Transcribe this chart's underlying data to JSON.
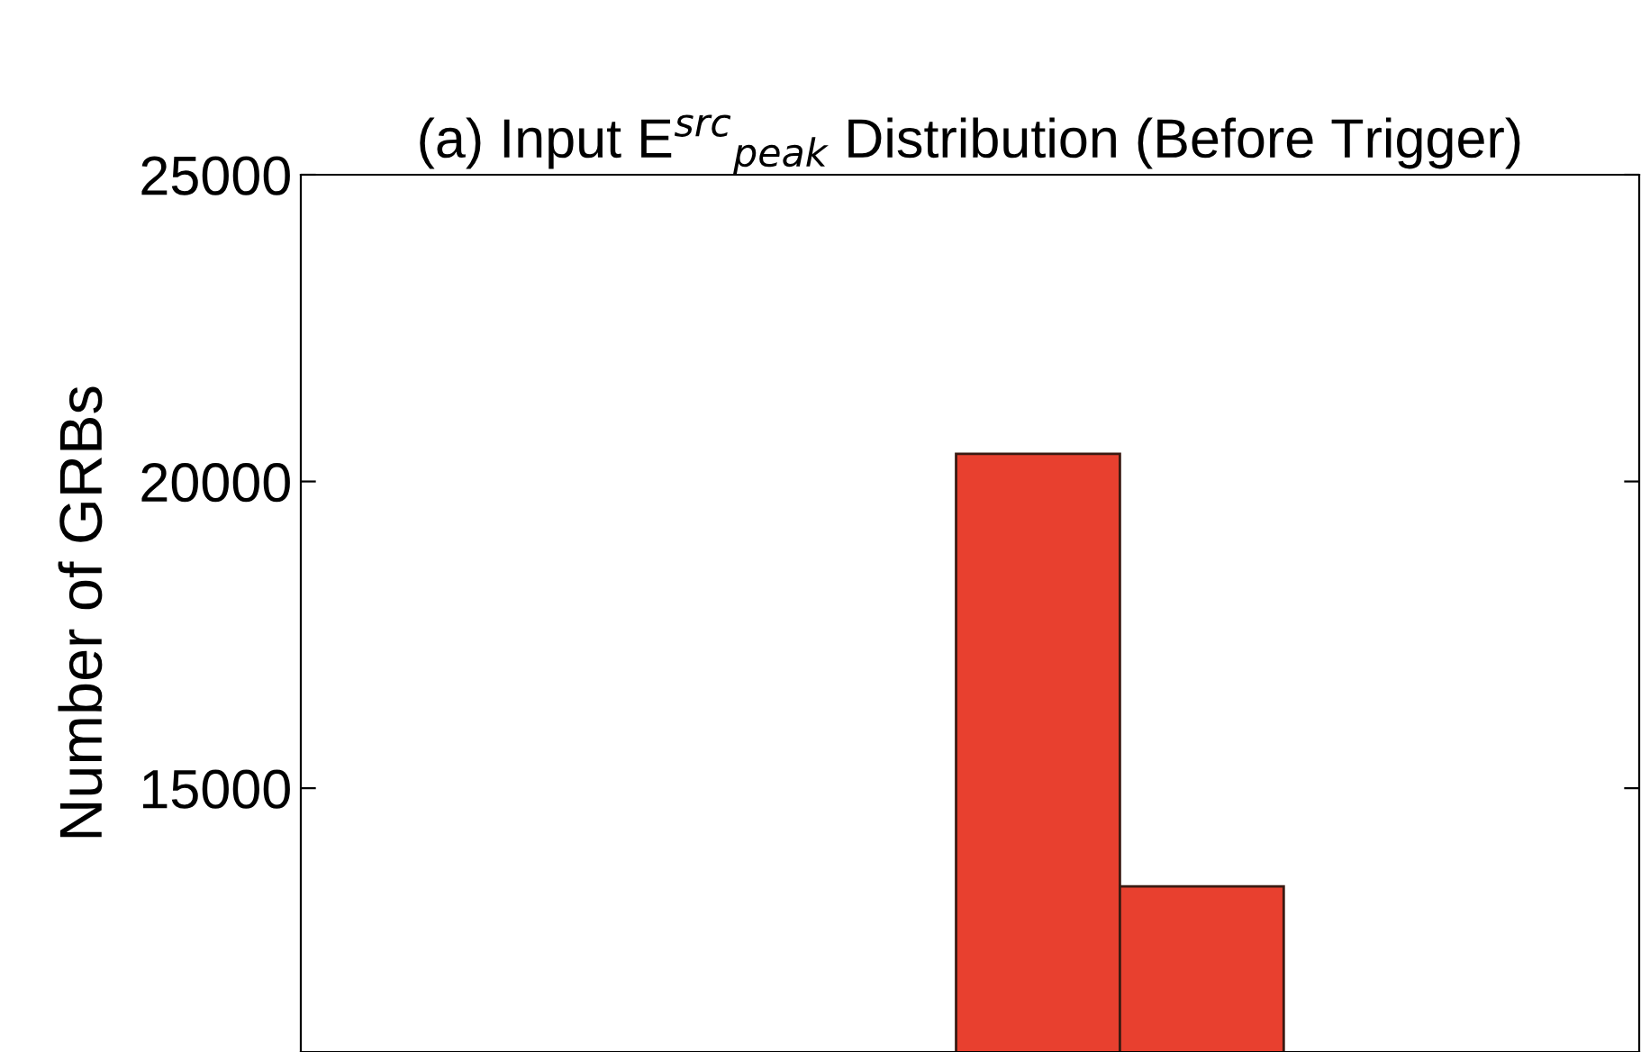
{
  "chart_data": {
    "type": "bar",
    "title": "(a) Input E$^{src}$$_{peak}$ Distribution (Before Trigger)",
    "ylabel": "Number of GRBs",
    "categories": [
      null,
      null,
      null,
      null,
      null,
      null,
      null,
      null
    ],
    "values": [
      null,
      null,
      null,
      null,
      20450,
      13400,
      null,
      null
    ],
    "color": "#e8402f",
    "ylim": [
      10700,
      25000
    ],
    "yticks": [
      15000,
      20000,
      25000
    ],
    "tick_labels": "y",
    "grid": false,
    "legend": false
  }
}
